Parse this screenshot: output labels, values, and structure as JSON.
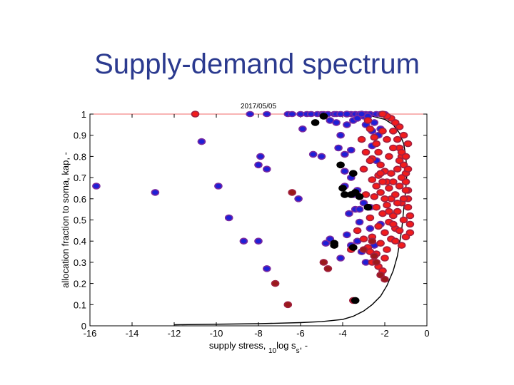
{
  "slide": {
    "title": "Supply-demand spectrum"
  },
  "chart_data": {
    "type": "scatter",
    "title": "2017/05/05",
    "xlabel": "supply stress, 10log ss, -",
    "ylabel": "allocation fraction to soma, kap, -",
    "xlim": [
      -16,
      0
    ],
    "ylim": [
      0,
      1
    ],
    "xticks": [
      -16,
      -14,
      -12,
      -10,
      -8,
      -6,
      -4,
      -2,
      0
    ],
    "yticks": [
      0,
      0.1,
      0.2,
      0.3,
      0.4,
      0.5,
      0.6,
      0.7,
      0.8,
      0.9,
      1
    ],
    "grid": false,
    "colors": {
      "blue_fill": "#1f1fd6",
      "blue_edge": "#7a2aa0",
      "red_fill": "#f21c1c",
      "red_edge": "#a02040",
      "darkred_fill": "#9a1a1a",
      "black_fill": "#000000",
      "curve": "#000000",
      "reference_line": "#f26a6a"
    },
    "reference_line_y": 1,
    "series": [
      {
        "group": "blue",
        "points": [
          [
            -15.7,
            0.66
          ],
          [
            -12.9,
            0.63
          ],
          [
            -10.7,
            0.87
          ],
          [
            -9.9,
            0.66
          ],
          [
            -9.4,
            0.51
          ],
          [
            -8.7,
            0.4
          ],
          [
            -8.0,
            0.4
          ],
          [
            -7.9,
            0.8
          ],
          [
            -8.0,
            0.76
          ],
          [
            -7.6,
            0.74
          ],
          [
            -7.6,
            0.27
          ],
          [
            -6.1,
            0.6
          ],
          [
            -5.9,
            0.93
          ],
          [
            -5.4,
            0.81
          ],
          [
            -5.0,
            0.8
          ],
          [
            -4.8,
            0.39
          ],
          [
            -4.6,
            0.41
          ],
          [
            -4.6,
            0.97
          ],
          [
            -4.3,
            0.96
          ],
          [
            -4.1,
            0.9
          ],
          [
            -4.2,
            0.84
          ],
          [
            -3.9,
            0.81
          ],
          [
            -3.6,
            0.83
          ],
          [
            -3.8,
            0.95
          ],
          [
            -3.5,
            0.97
          ],
          [
            -3.3,
            0.98
          ],
          [
            -3.0,
            0.99
          ],
          [
            -2.9,
            0.95
          ],
          [
            -2.6,
            0.92
          ],
          [
            -2.5,
            0.96
          ],
          [
            -2.3,
            0.9
          ],
          [
            -2.2,
            0.93
          ],
          [
            -3.9,
            0.73
          ],
          [
            -3.6,
            0.7
          ],
          [
            -3.9,
            0.66
          ],
          [
            -3.3,
            0.64
          ],
          [
            -3.4,
            0.55
          ],
          [
            -3.7,
            0.53
          ],
          [
            -3.2,
            0.49
          ],
          [
            -3.8,
            0.43
          ],
          [
            -3.6,
            0.38
          ],
          [
            -3.3,
            0.4
          ],
          [
            -3.1,
            0.35
          ],
          [
            -2.7,
            0.46
          ],
          [
            -2.9,
            0.3
          ],
          [
            -3.2,
            0.55
          ],
          [
            -3.8,
            1.0
          ],
          [
            -3.1,
            1.0
          ],
          [
            -2.8,
            0.99
          ],
          [
            -2.6,
            0.85
          ],
          [
            -2.4,
            0.78
          ],
          [
            -3.0,
            0.58
          ],
          [
            -2.7,
            0.56
          ],
          [
            -4.1,
            0.32
          ],
          [
            -3.5,
            0.62
          ],
          [
            -2.2,
            0.48
          ],
          [
            -2.5,
            0.38
          ]
        ]
      },
      {
        "group": "blue_top",
        "points": [
          [
            -8.4,
            1.0
          ],
          [
            -7.6,
            1.0
          ],
          [
            -6.6,
            1.0
          ],
          [
            -6.4,
            1.0
          ],
          [
            -6.0,
            1.0
          ],
          [
            -5.7,
            1.0
          ],
          [
            -5.5,
            1.0
          ],
          [
            -5.2,
            1.0
          ],
          [
            -5.0,
            1.0
          ],
          [
            -4.9,
            1.0
          ],
          [
            -4.7,
            1.0
          ],
          [
            -4.4,
            1.0
          ],
          [
            -4.3,
            1.0
          ],
          [
            -4.1,
            1.0
          ],
          [
            -3.6,
            1.0
          ],
          [
            -3.4,
            1.0
          ],
          [
            -3.2,
            1.0
          ],
          [
            -2.9,
            1.0
          ],
          [
            -2.7,
            1.0
          ],
          [
            -2.4,
            1.0
          ],
          [
            -2.2,
            1.0
          ],
          [
            -2.0,
            1.0
          ]
        ]
      },
      {
        "group": "red",
        "points": [
          [
            -11.0,
            1.0
          ],
          [
            -2.8,
            0.97
          ],
          [
            -2.7,
            0.93
          ],
          [
            -2.5,
            0.89
          ],
          [
            -2.4,
            0.86
          ],
          [
            -2.3,
            0.82
          ],
          [
            -2.6,
            0.79
          ],
          [
            -2.2,
            0.76
          ],
          [
            -2.0,
            0.73
          ],
          [
            -2.3,
            0.71
          ],
          [
            -2.6,
            0.69
          ],
          [
            -1.9,
            0.68
          ],
          [
            -1.8,
            0.65
          ],
          [
            -2.2,
            0.63
          ],
          [
            -2.5,
            0.61
          ],
          [
            -1.7,
            0.6
          ],
          [
            -1.9,
            0.57
          ],
          [
            -2.4,
            0.56
          ],
          [
            -2.1,
            0.53
          ],
          [
            -1.6,
            0.52
          ],
          [
            -2.7,
            0.51
          ],
          [
            -1.8,
            0.49
          ],
          [
            -2.3,
            0.47
          ],
          [
            -1.5,
            0.46
          ],
          [
            -2.0,
            0.44
          ],
          [
            -2.6,
            0.42
          ],
          [
            -1.7,
            0.41
          ],
          [
            -2.2,
            0.39
          ],
          [
            -2.8,
            0.37
          ],
          [
            -1.9,
            0.36
          ],
          [
            -2.4,
            0.34
          ],
          [
            -2.0,
            0.32
          ],
          [
            -2.6,
            0.3
          ],
          [
            -2.3,
            0.28
          ],
          [
            -2.1,
            0.26
          ],
          [
            -1.6,
            0.92
          ],
          [
            -1.4,
            0.88
          ],
          [
            -1.3,
            0.84
          ],
          [
            -1.2,
            0.8
          ],
          [
            -1.1,
            0.76
          ],
          [
            -1.0,
            0.72
          ],
          [
            -1.0,
            0.68
          ],
          [
            -0.9,
            0.64
          ],
          [
            -0.9,
            0.6
          ],
          [
            -0.9,
            0.56
          ],
          [
            -0.8,
            0.52
          ],
          [
            -0.8,
            0.48
          ],
          [
            -0.8,
            0.44
          ],
          [
            -1.3,
            0.94
          ],
          [
            -1.5,
            0.96
          ],
          [
            -1.1,
            0.9
          ],
          [
            -0.9,
            0.86
          ],
          [
            -1.7,
            0.98
          ],
          [
            -1.9,
            0.99
          ],
          [
            -2.1,
            1.0
          ],
          [
            -1.2,
            0.7
          ],
          [
            -1.4,
            0.74
          ],
          [
            -1.3,
            0.66
          ],
          [
            -1.5,
            0.62
          ],
          [
            -1.2,
            0.58
          ],
          [
            -1.4,
            0.54
          ],
          [
            -1.1,
            0.5
          ],
          [
            -1.6,
            0.48
          ],
          [
            -1.3,
            0.45
          ],
          [
            -1.0,
            0.42
          ],
          [
            -1.5,
            0.4
          ],
          [
            -1.2,
            0.38
          ],
          [
            -2.9,
            0.62
          ],
          [
            -3.0,
            0.74
          ],
          [
            -2.7,
            0.78
          ],
          [
            -3.1,
            0.88
          ],
          [
            -2.9,
            0.82
          ],
          [
            -3.3,
            0.45
          ],
          [
            -3.0,
            0.41
          ],
          [
            -2.7,
            0.35
          ],
          [
            -3.6,
            0.36
          ],
          [
            -2.5,
            0.33
          ],
          [
            -2.2,
            0.72
          ],
          [
            -1.8,
            0.8
          ],
          [
            -1.6,
            0.84
          ],
          [
            -1.7,
            0.72
          ],
          [
            -2.0,
            0.6
          ],
          [
            -1.8,
            0.54
          ],
          [
            -2.4,
            0.66
          ],
          [
            -2.1,
            0.68
          ],
          [
            -1.4,
            0.58
          ],
          [
            -1.0,
            0.64
          ],
          [
            -1.1,
            0.6
          ],
          [
            -1.6,
            0.68
          ],
          [
            -1.9,
            0.88
          ],
          [
            -2.1,
            0.92
          ],
          [
            -1.2,
            0.82
          ],
          [
            -0.9,
            0.74
          ],
          [
            -1.0,
            0.8
          ],
          [
            -1.3,
            0.78
          ]
        ]
      },
      {
        "group": "darkred",
        "points": [
          [
            -6.6,
            0.1
          ],
          [
            -7.2,
            0.2
          ],
          [
            -6.4,
            0.63
          ],
          [
            -4.9,
            0.3
          ],
          [
            -4.7,
            0.27
          ],
          [
            -3.5,
            0.12
          ],
          [
            -3.0,
            0.36
          ],
          [
            -2.5,
            0.33
          ],
          [
            -2.2,
            0.24
          ],
          [
            -2.0,
            0.22
          ],
          [
            -2.4,
            0.3
          ],
          [
            -2.6,
            0.4
          ]
        ]
      },
      {
        "group": "black",
        "points": [
          [
            -5.3,
            0.96
          ],
          [
            -4.9,
            0.99
          ],
          [
            -4.1,
            0.76
          ],
          [
            -3.5,
            0.72
          ],
          [
            -4.0,
            0.65
          ],
          [
            -3.6,
            0.62
          ],
          [
            -3.2,
            0.61
          ],
          [
            -2.8,
            0.56
          ],
          [
            -4.4,
            0.39
          ],
          [
            -4.4,
            0.38
          ],
          [
            -3.5,
            0.37
          ],
          [
            -3.4,
            0.12
          ],
          [
            -3.4,
            0.63
          ],
          [
            -3.9,
            0.62
          ]
        ]
      }
    ],
    "curve": {
      "points": [
        [
          -12.0,
          0.005
        ],
        [
          -8.0,
          0.01
        ],
        [
          -6.0,
          0.015
        ],
        [
          -5.0,
          0.02
        ],
        [
          -4.0,
          0.03
        ],
        [
          -3.5,
          0.045
        ],
        [
          -3.0,
          0.07
        ],
        [
          -2.6,
          0.1
        ],
        [
          -2.2,
          0.14
        ],
        [
          -1.9,
          0.19
        ],
        [
          -1.6,
          0.26
        ],
        [
          -1.4,
          0.33
        ],
        [
          -1.2,
          0.45
        ],
        [
          -1.1,
          0.55
        ],
        [
          -1.0,
          0.65
        ],
        [
          -0.95,
          0.72
        ],
        [
          -1.0,
          0.8
        ],
        [
          -1.1,
          0.86
        ],
        [
          -1.3,
          0.91
        ],
        [
          -1.6,
          0.95
        ],
        [
          -2.0,
          0.975
        ],
        [
          -2.6,
          0.99
        ],
        [
          -3.5,
          0.998
        ],
        [
          -4.5,
          1.0
        ]
      ]
    }
  }
}
